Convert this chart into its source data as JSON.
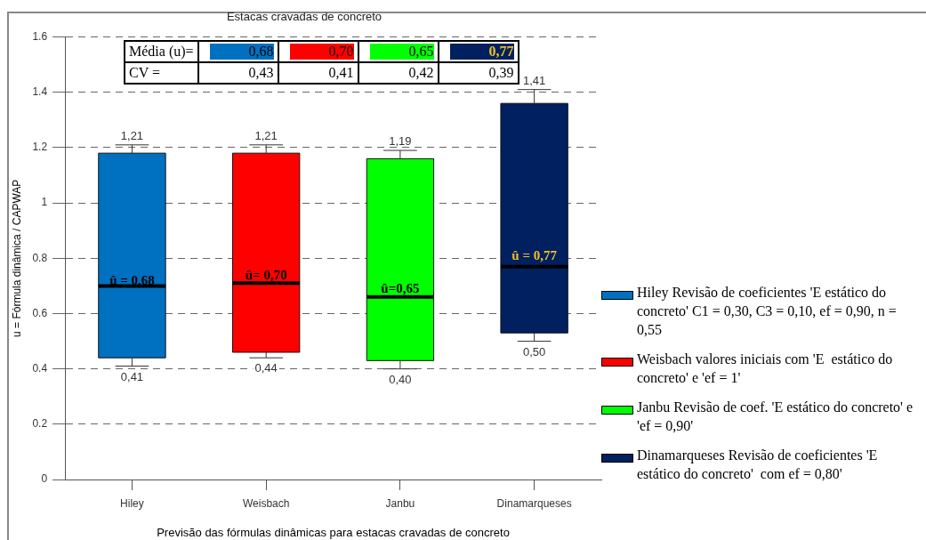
{
  "chart_data": {
    "type": "box",
    "title": "Estacas cravadas de concreto",
    "xlabel": "Previsão das fórmulas dinâmicas para estacas cravadas de concreto",
    "ylabel": "u = Fórmula dinâmica / CAPWAP",
    "categories": [
      "Hiley",
      "Weisbach",
      "Janbu",
      "Dinamarqueses"
    ],
    "series": [
      {
        "name": "Hiley Revisão de coeficientes 'E estático do concreto' C1 = 0,30, C3 = 0,10, ef = 0,90, n = 0,55",
        "color": "#0070c0",
        "boxes": [
          {
            "low": 0.41,
            "q1": 0.44,
            "median": 0.7,
            "q3": 1.18,
            "high": 1.21
          },
          null,
          null,
          null
        ]
      },
      {
        "name": "Weisbach valores iniciais com 'E  estático do concreto' e 'ef = 1'",
        "color": "#ff0000",
        "boxes": [
          null,
          {
            "low": 0.44,
            "q1": 0.46,
            "median": 0.71,
            "q3": 1.18,
            "high": 1.21
          },
          null,
          null
        ]
      },
      {
        "name": "Janbu Revisão de coef. 'E estático do concreto' e 'ef = 0,90'",
        "color": "#00ff00",
        "boxes": [
          null,
          null,
          {
            "low": 0.4,
            "q1": 0.43,
            "median": 0.66,
            "q3": 1.16,
            "high": 1.19
          },
          null
        ]
      },
      {
        "name": "Dinamarqueses Revisão de coeficientes 'E estático do concreto'  com ef = 0,80'",
        "color": "#002060",
        "boxes": [
          null,
          null,
          null,
          {
            "low": 0.5,
            "q1": 0.53,
            "median": 0.77,
            "q3": 1.36,
            "high": 1.41
          }
        ]
      }
    ],
    "ylim": [
      0,
      1.6
    ],
    "yticks": [
      0,
      0.2,
      0.4,
      0.6,
      0.8,
      1,
      1.2,
      1.4,
      1.6
    ],
    "grid": "y",
    "legend": "right",
    "annotations": [
      {
        "text": "1,21",
        "x": "Hiley",
        "y": 1.21
      },
      {
        "text": "0,41",
        "x": "Hiley",
        "y": 0.41
      },
      {
        "text": "û = 0,68",
        "x": "Hiley",
        "y": 0.68
      },
      {
        "text": "1,21",
        "x": "Weisbach",
        "y": 1.21
      },
      {
        "text": "0,44",
        "x": "Weisbach",
        "y": 0.44
      },
      {
        "text": "û= 0,70",
        "x": "Weisbach",
        "y": 0.7
      },
      {
        "text": "1,19",
        "x": "Janbu",
        "y": 1.19
      },
      {
        "text": "0,40",
        "x": "Janbu",
        "y": 0.4
      },
      {
        "text": "û=0,65",
        "x": "Janbu",
        "y": 0.65
      },
      {
        "text": "1,41",
        "x": "Dinamarqueses",
        "y": 1.41
      },
      {
        "text": "0,50",
        "x": "Dinamarqueses",
        "y": 0.5
      },
      {
        "text": "û = 0,77",
        "x": "Dinamarqueses",
        "y": 0.77
      },
      "Média (u)=",
      "0,68",
      "0,70",
      "0,65",
      "0,77",
      "CV  =",
      "0,43",
      "0,41",
      "0,42",
      "0,39"
    ]
  }
}
